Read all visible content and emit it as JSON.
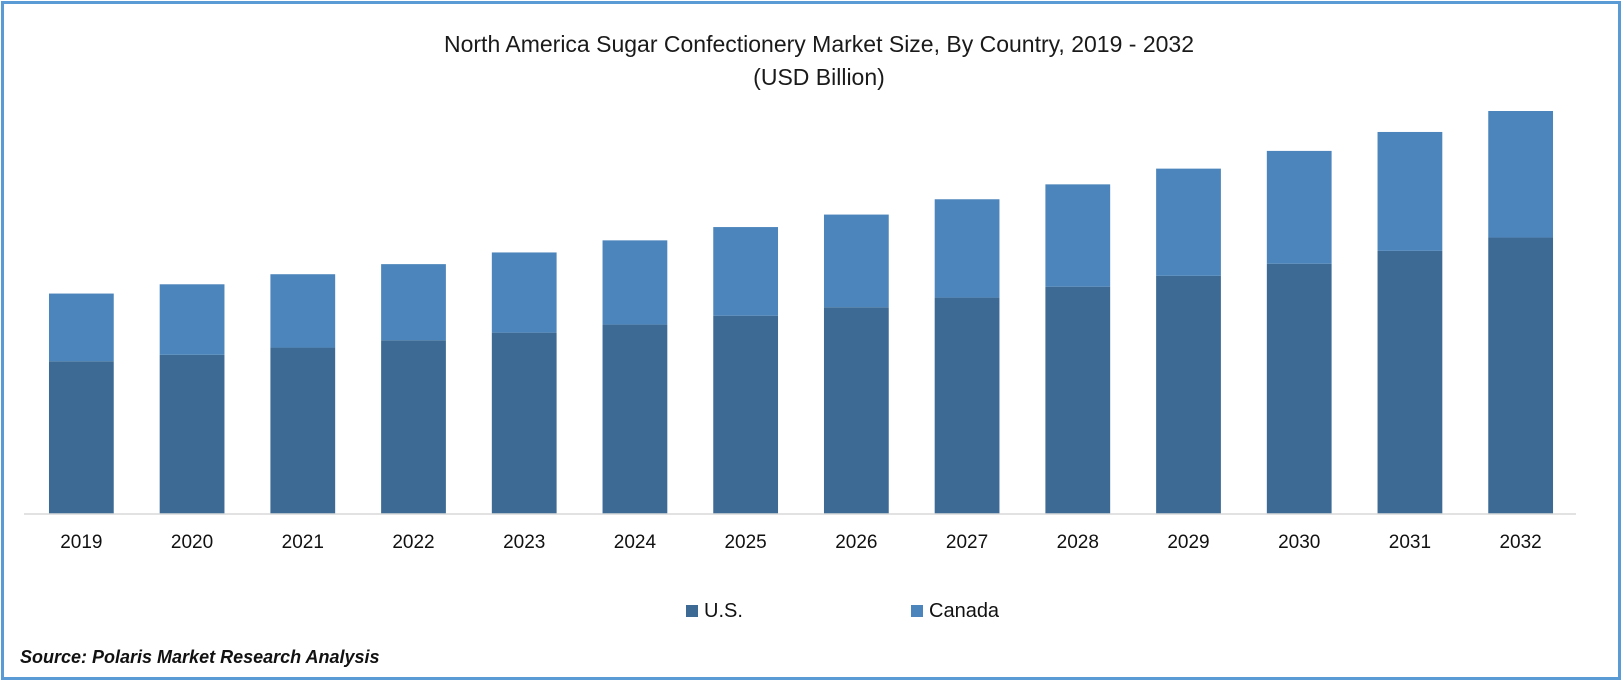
{
  "chart_data": {
    "type": "bar",
    "stacked": true,
    "title": "North America Sugar Confectionery Market Size, By Country, 2019 - 2032",
    "subtitle": "(USD Billion)",
    "xlabel": "",
    "ylabel": "",
    "grid": false,
    "y_axis_shown": false,
    "legend_position": "bottom",
    "ylim": [
      0,
      10
    ],
    "categories": [
      "2019",
      "2020",
      "2021",
      "2022",
      "2023",
      "2024",
      "2025",
      "2026",
      "2027",
      "2028",
      "2029",
      "2030",
      "2031",
      "2032"
    ],
    "series": [
      {
        "name": "U.S.",
        "color": "#3d6a94",
        "values": [
          3.79,
          3.95,
          4.13,
          4.31,
          4.5,
          4.7,
          4.92,
          5.13,
          5.37,
          5.64,
          5.91,
          6.21,
          6.53,
          6.86
        ]
      },
      {
        "name": "Canada",
        "color": "#4c85bb",
        "values": [
          1.68,
          1.75,
          1.82,
          1.89,
          1.99,
          2.09,
          2.2,
          2.3,
          2.44,
          2.54,
          2.66,
          2.8,
          2.95,
          3.14
        ]
      }
    ]
  },
  "source_text": "Source: Polaris Market Research Analysis"
}
